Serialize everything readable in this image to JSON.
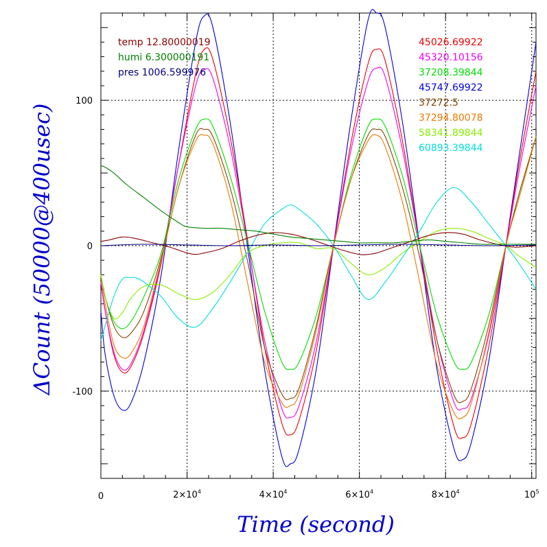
{
  "chart_data": {
    "type": "line",
    "xlabel": "Time (second)",
    "ylabel": "ΔCount (50000@400usec)",
    "xlim": [
      0,
      101000
    ],
    "ylim": [
      -160,
      160
    ],
    "x_ticks": [
      {
        "value": 0,
        "label": "0",
        "exp": ""
      },
      {
        "value": 20000,
        "label": "2×10",
        "exp": "4"
      },
      {
        "value": 40000,
        "label": "4×10",
        "exp": "4"
      },
      {
        "value": 60000,
        "label": "6×10",
        "exp": "4"
      },
      {
        "value": 80000,
        "label": "8×10",
        "exp": "4"
      },
      {
        "value": 100000,
        "label": "10",
        "exp": "5"
      }
    ],
    "y_ticks": [
      {
        "value": 100,
        "label": "100"
      },
      {
        "value": 0,
        "label": "0"
      },
      {
        "value": -100,
        "label": "-100"
      }
    ],
    "grid": true,
    "axis_color": "#0000cc",
    "legend_left": [
      {
        "name": "temp 12.80000019",
        "color": "#8b0000"
      },
      {
        "name": "humi 6.300000191",
        "color": "#008000"
      },
      {
        "name": "pres 1006.599976",
        "color": "#000080"
      }
    ],
    "legend_right": [
      {
        "name": "45026.69922",
        "color": "#ee0000"
      },
      {
        "name": "45320.10156",
        "color": "#ee00ee"
      },
      {
        "name": "37208.39844",
        "color": "#00dd00"
      },
      {
        "name": "45747.69922",
        "color": "#0000dd"
      },
      {
        "name": "37272.5",
        "color": "#884400"
      },
      {
        "name": "37294.80078",
        "color": "#ee7700"
      },
      {
        "name": "58341.89844",
        "color": "#88ee00"
      },
      {
        "name": "60893.39844",
        "color": "#00dddd"
      }
    ],
    "series": [
      {
        "color": "#0000dd",
        "x": [
          0,
          1000,
          3000,
          5000,
          7000,
          10000,
          14000,
          18000,
          22000,
          24000,
          26000,
          30000,
          34000,
          38000,
          42000,
          44000,
          46000,
          50000,
          54000,
          58000,
          62000,
          64000,
          66000,
          70000,
          74000,
          78000,
          82000,
          84000,
          86000,
          90000,
          94000,
          97000,
          101000
        ],
        "y": [
          -45,
          -75,
          -103,
          -113,
          -108,
          -80,
          -20,
          65,
          140,
          158,
          150,
          85,
          0,
          -85,
          -145,
          -150,
          -140,
          -85,
          0,
          85,
          155,
          160,
          150,
          85,
          0,
          -85,
          -140,
          -147,
          -135,
          -80,
          0,
          60,
          140
        ]
      },
      {
        "color": "#ee0000",
        "x": [
          0,
          1000,
          3000,
          5000,
          7000,
          10000,
          14000,
          18000,
          22000,
          24000,
          26000,
          30000,
          34000,
          38000,
          42000,
          44000,
          46000,
          50000,
          54000,
          58000,
          62000,
          64000,
          66000,
          70000,
          74000,
          78000,
          82000,
          84000,
          86000,
          90000,
          94000,
          97000,
          101000
        ],
        "y": [
          -25,
          -45,
          -75,
          -87,
          -83,
          -60,
          -12,
          55,
          118,
          135,
          128,
          75,
          5,
          -70,
          -122,
          -130,
          -120,
          -72,
          0,
          70,
          125,
          135,
          127,
          72,
          0,
          -72,
          -125,
          -132,
          -122,
          -70,
          0,
          55,
          120
        ]
      },
      {
        "color": "#ee00ee",
        "x": [
          0,
          1000,
          3000,
          5000,
          7000,
          10000,
          14000,
          18000,
          22000,
          24000,
          26000,
          30000,
          34000,
          38000,
          42000,
          44000,
          46000,
          50000,
          54000,
          58000,
          62000,
          64000,
          66000,
          70000,
          74000,
          78000,
          82000,
          84000,
          86000,
          90000,
          94000,
          97000,
          101000
        ],
        "y": [
          -25,
          -45,
          -73,
          -85,
          -81,
          -58,
          -10,
          55,
          110,
          121,
          115,
          68,
          3,
          -65,
          -112,
          -118,
          -110,
          -66,
          0,
          65,
          113,
          122,
          116,
          66,
          0,
          -65,
          -108,
          -112,
          -105,
          -62,
          0,
          50,
          110
        ]
      },
      {
        "color": "#00dd00",
        "x": [
          0,
          1000,
          3000,
          5000,
          7000,
          10000,
          14000,
          18000,
          22000,
          24000,
          26000,
          30000,
          34000,
          38000,
          42000,
          44000,
          46000,
          50000,
          54000,
          58000,
          62000,
          64000,
          66000,
          70000,
          74000,
          78000,
          82000,
          84000,
          86000,
          90000,
          94000,
          97000,
          101000
        ],
        "y": [
          -20,
          -35,
          -52,
          -57,
          -52,
          -35,
          -5,
          45,
          80,
          87,
          82,
          48,
          3,
          -45,
          -80,
          -85,
          -80,
          -48,
          0,
          48,
          82,
          87,
          82,
          48,
          0,
          -48,
          -80,
          -85,
          -80,
          -48,
          0,
          35,
          75
        ]
      },
      {
        "color": "#884400",
        "x": [
          0,
          1000,
          3000,
          5000,
          7000,
          10000,
          14000,
          18000,
          22000,
          24000,
          26000,
          30000,
          34000,
          38000,
          42000,
          44000,
          46000,
          50000,
          54000,
          58000,
          62000,
          64000,
          66000,
          70000,
          74000,
          78000,
          82000,
          84000,
          86000,
          90000,
          94000,
          97000,
          101000
        ],
        "y": [
          -20,
          -35,
          -55,
          -63,
          -60,
          -45,
          -8,
          40,
          76,
          80,
          75,
          40,
          -10,
          -70,
          -102,
          -105,
          -98,
          -55,
          0,
          45,
          76,
          80,
          75,
          40,
          -8,
          -65,
          -103,
          -107,
          -98,
          -55,
          0,
          35,
          75
        ]
      },
      {
        "color": "#ee7700",
        "x": [
          0,
          1000,
          3000,
          5000,
          7000,
          10000,
          14000,
          18000,
          22000,
          24000,
          26000,
          30000,
          34000,
          38000,
          42000,
          44000,
          46000,
          50000,
          54000,
          58000,
          62000,
          64000,
          66000,
          70000,
          74000,
          78000,
          82000,
          84000,
          86000,
          90000,
          94000,
          97000,
          101000
        ],
        "y": [
          -20,
          -40,
          -68,
          -77,
          -74,
          -55,
          -10,
          40,
          72,
          76,
          70,
          32,
          -25,
          -80,
          -108,
          -110,
          -102,
          -58,
          0,
          45,
          72,
          76,
          68,
          30,
          -25,
          -82,
          -115,
          -118,
          -108,
          -60,
          0,
          32,
          75
        ]
      },
      {
        "color": "#88ee00",
        "x": [
          0,
          1000,
          3000,
          5000,
          7000,
          10000,
          14000,
          18000,
          22000,
          26000,
          30000,
          34000,
          38000,
          42000,
          46000,
          50000,
          54000,
          58000,
          62000,
          66000,
          70000,
          74000,
          78000,
          82000,
          86000,
          90000,
          94000,
          97000,
          101000
        ],
        "y": [
          -20,
          -35,
          -50,
          -46,
          -36,
          -28,
          -27,
          -33,
          -37,
          -32,
          -20,
          -5,
          0,
          2,
          2,
          -2,
          -2,
          -12,
          -20,
          -15,
          -5,
          3,
          10,
          12,
          10,
          5,
          0,
          -7,
          -15
        ]
      },
      {
        "color": "#00dddd",
        "x": [
          0,
          1000,
          3000,
          5000,
          7000,
          8000,
          10000,
          14000,
          18000,
          22000,
          26000,
          30000,
          34000,
          38000,
          42000,
          44000,
          46000,
          50000,
          54000,
          58000,
          62000,
          66000,
          70000,
          74000,
          78000,
          82000,
          86000,
          90000,
          94000,
          97000,
          101000
        ],
        "y": [
          -65,
          -55,
          -35,
          -23,
          -22,
          -22,
          -25,
          -35,
          -50,
          -56,
          -43,
          -25,
          -5,
          15,
          25,
          28,
          25,
          15,
          0,
          -20,
          -37,
          -25,
          -8,
          10,
          30,
          40,
          30,
          15,
          0,
          -12,
          -30
        ]
      },
      {
        "color": "#8b0000",
        "x": [
          0,
          2000,
          5000,
          8000,
          12000,
          16000,
          20000,
          22000,
          24000,
          28000,
          32000,
          36000,
          40000,
          44000,
          48000,
          52000,
          56000,
          60000,
          62000,
          64000,
          68000,
          72000,
          76000,
          80000,
          84000,
          88000,
          92000,
          96000,
          101000
        ],
        "y": [
          3,
          4,
          6,
          5,
          2,
          -1,
          -5,
          -6,
          -5,
          -2,
          3,
          7,
          9,
          8,
          5,
          1,
          -3,
          -6,
          -6,
          -5,
          -1,
          3,
          7,
          9,
          8,
          4,
          1,
          -1,
          0
        ]
      },
      {
        "color": "#008000",
        "x": [
          0,
          1000,
          3000,
          6000,
          10000,
          14000,
          18000,
          20000,
          24000,
          28000,
          32000,
          36000,
          40000,
          44000,
          48000,
          52000,
          56000,
          60000,
          64000,
          68000,
          72000,
          76000,
          80000,
          84000,
          88000,
          92000,
          96000,
          101000
        ],
        "y": [
          55,
          54,
          50,
          42,
          33,
          24,
          16,
          13,
          12,
          12,
          11,
          10,
          8,
          6,
          5,
          4,
          3,
          2,
          2,
          2,
          3,
          4,
          3,
          2,
          1,
          1,
          1,
          1
        ]
      },
      {
        "color": "#000080",
        "x": [
          0,
          10000,
          20000,
          30000,
          40000,
          50000,
          60000,
          70000,
          80000,
          90000,
          101000
        ],
        "y": [
          0,
          1,
          0.5,
          0,
          0.5,
          0,
          0.5,
          1,
          0.5,
          0,
          0.5
        ]
      }
    ]
  }
}
